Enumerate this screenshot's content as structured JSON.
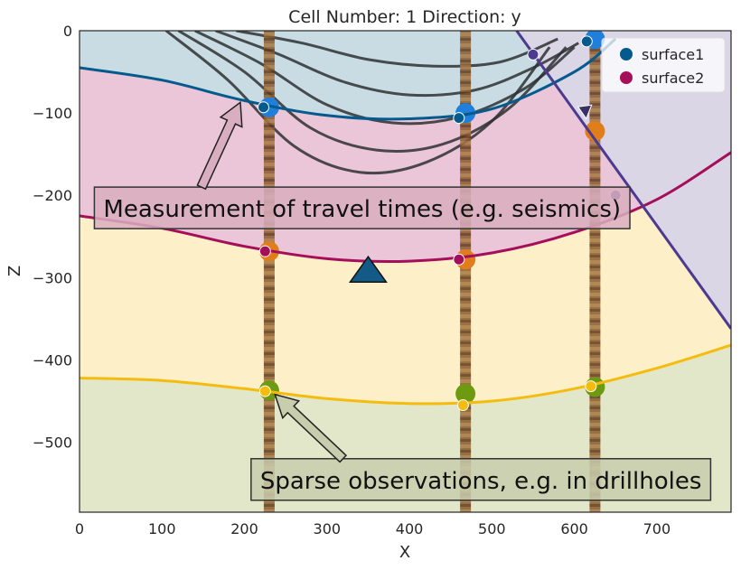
{
  "chart_data": {
    "type": "scatter",
    "title": "Cell Number: 1 Direction: y",
    "xlabel": "X",
    "ylabel": "Z",
    "xlim": [
      0,
      790
    ],
    "ylim": [
      -585,
      0
    ],
    "xticks": [
      0,
      100,
      200,
      300,
      400,
      500,
      600,
      700
    ],
    "yticks": [
      0,
      -100,
      -200,
      -300,
      -400,
      -500
    ],
    "xtick_labels": [
      "0",
      "100",
      "200",
      "300",
      "400",
      "500",
      "600",
      "700"
    ],
    "ytick_labels": [
      "0",
      "−100",
      "−200",
      "−300",
      "−400",
      "−500"
    ],
    "grid": false,
    "legend_position": "top-right",
    "colors": {
      "surface1": "#045a8d",
      "surface2": "#a50f5a",
      "fault": "#4b3a8f",
      "basement": "#f5bc10",
      "layer_top": "#c9dce3",
      "layer_pink": "#ebc6d8",
      "layer_yellow": "#fdf0c9",
      "layer_green": "#e1e7c8",
      "fault_block": "#dad6e6",
      "drill_blue": "#1f7fdb",
      "drill_orange": "#e07e1c",
      "drill_green": "#6e9a12"
    },
    "legend": [
      {
        "name": "surface1",
        "color": "#045a8d"
      },
      {
        "name": "surface2",
        "color": "#a50f5a"
      }
    ],
    "surfaces": [
      {
        "id": "surface1",
        "x": [
          0,
          100,
          200,
          300,
          400,
          500,
          600,
          650
        ],
        "y": [
          -45,
          -60,
          -85,
          -103,
          -107,
          -95,
          -50,
          -10
        ]
      },
      {
        "id": "surface2",
        "x": [
          0,
          100,
          200,
          300,
          400,
          500,
          600,
          700,
          790
        ],
        "y": [
          -225,
          -240,
          -262,
          -277,
          -280,
          -270,
          -245,
          -205,
          -148
        ]
      },
      {
        "id": "basement",
        "x": [
          0,
          100,
          200,
          300,
          400,
          500,
          600,
          700,
          790
        ],
        "y": [
          -422,
          -425,
          -435,
          -447,
          -453,
          -450,
          -435,
          -410,
          -382
        ]
      },
      {
        "id": "fault",
        "x": [
          530,
          790
        ],
        "y": [
          0,
          -362
        ]
      }
    ],
    "series": [
      {
        "id": "surface1-points",
        "color": "#045a8d",
        "points": [
          [
            223,
            -93
          ],
          [
            460,
            -106
          ],
          [
            615,
            -13
          ]
        ]
      },
      {
        "id": "surface2-points",
        "color": "#a50f5a",
        "points": [
          [
            225,
            -268
          ],
          [
            460,
            -278
          ]
        ]
      },
      {
        "id": "fault-points",
        "color": "#4b3a8f",
        "points": [
          [
            550,
            -29
          ],
          [
            650,
            -200
          ]
        ]
      },
      {
        "id": "basement-points",
        "color": "#f5bc10",
        "points": [
          [
            225,
            -438
          ],
          [
            465,
            -455
          ],
          [
            620,
            -432
          ]
        ]
      }
    ],
    "drillholes": [
      {
        "x": 230,
        "markers": [
          {
            "y": -93,
            "color": "#1f7fdb"
          },
          {
            "y": -268,
            "color": "#e07e1c"
          },
          {
            "y": -437,
            "color": "#6e9a12"
          }
        ]
      },
      {
        "x": 468,
        "markers": [
          {
            "y": -100,
            "color": "#1f7fdb"
          },
          {
            "y": -278,
            "color": "#e07e1c"
          },
          {
            "y": -441,
            "color": "#6e9a12"
          }
        ]
      },
      {
        "x": 625,
        "markers": [
          {
            "y": -10,
            "color": "#1f7fdb"
          },
          {
            "y": -122,
            "color": "#e07e1c"
          },
          {
            "y": -433,
            "color": "#6e9a12"
          }
        ]
      }
    ],
    "seismic_curves": [
      {
        "x": [
          105,
          180,
          260,
          340,
          420,
          500,
          570
        ],
        "y": [
          0,
          -60,
          -140,
          -172,
          -160,
          -110,
          -20
        ]
      },
      {
        "x": [
          120,
          200,
          280,
          360,
          440,
          520,
          590
        ],
        "y": [
          0,
          -50,
          -118,
          -145,
          -138,
          -95,
          -20
        ]
      },
      {
        "x": [
          140,
          220,
          300,
          380,
          460,
          540,
          600
        ],
        "y": [
          0,
          -40,
          -90,
          -112,
          -105,
          -70,
          -20
        ]
      },
      {
        "x": [
          165,
          240,
          320,
          400,
          480,
          550,
          605
        ],
        "y": [
          0,
          -28,
          -62,
          -78,
          -72,
          -45,
          -15
        ]
      },
      {
        "x": [
          190,
          270,
          350,
          430,
          510,
          580
        ],
        "y": [
          0,
          -15,
          -35,
          -43,
          -38,
          -10
        ]
      }
    ],
    "source_marker": {
      "x": 350,
      "y": -290,
      "color": "#135a86"
    },
    "annotations": [
      {
        "text": "Measurement of travel times (e.g. seismics)",
        "x": 18,
        "y": -190,
        "arrow_to": [
          195,
          -87
        ],
        "box_color": "#d9aec0"
      },
      {
        "text": "Sparse observations, e.g. in drillholes",
        "x": 208,
        "y": -520,
        "arrow_to": [
          237,
          -442
        ],
        "box_color": "#c8cdad"
      }
    ]
  }
}
